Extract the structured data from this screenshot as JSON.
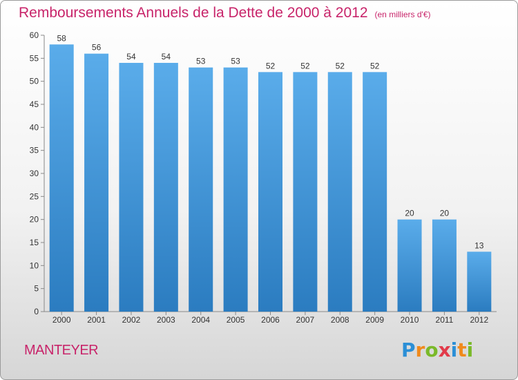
{
  "title": "Remboursements Annuels de la Dette de 2000 à 2012",
  "unit": "(en milliers d'€)",
  "commune": "MANTEYER",
  "logo": {
    "text": "Proxiti",
    "letters": [
      {
        "char": "P",
        "color": "#2b8fd6"
      },
      {
        "char": "r",
        "color": "#f08a1c"
      },
      {
        "char": "o",
        "color": "#7ab929"
      },
      {
        "char": "x",
        "color": "#e23a4a"
      },
      {
        "char": "i",
        "color": "#2b8fd6"
      },
      {
        "char": "t",
        "color": "#f08a1c"
      },
      {
        "char": "i",
        "color": "#7ab929"
      }
    ]
  },
  "chart_data": {
    "type": "bar",
    "title": "Remboursements Annuels de la Dette de 2000 à 2012",
    "subtitle": "(en milliers d'€)",
    "categories": [
      "2000",
      "2001",
      "2002",
      "2003",
      "2004",
      "2005",
      "2006",
      "2007",
      "2008",
      "2009",
      "2010",
      "2011",
      "2012"
    ],
    "values": [
      58,
      56,
      54,
      54,
      53,
      53,
      52,
      52,
      52,
      52,
      20,
      20,
      13
    ],
    "data_labels": [
      "58",
      "56",
      "54",
      "54",
      "53",
      "53",
      "52",
      "52",
      "52",
      "52",
      "20",
      "20",
      "13"
    ],
    "ylim": [
      0,
      60
    ],
    "yticks": [
      0,
      5,
      10,
      15,
      20,
      25,
      30,
      35,
      40,
      45,
      50,
      55,
      60
    ],
    "xlabel": "",
    "ylabel": "",
    "grid": false,
    "bar_color_top": "#5aacea",
    "bar_color_bottom": "#2b7cc0"
  }
}
